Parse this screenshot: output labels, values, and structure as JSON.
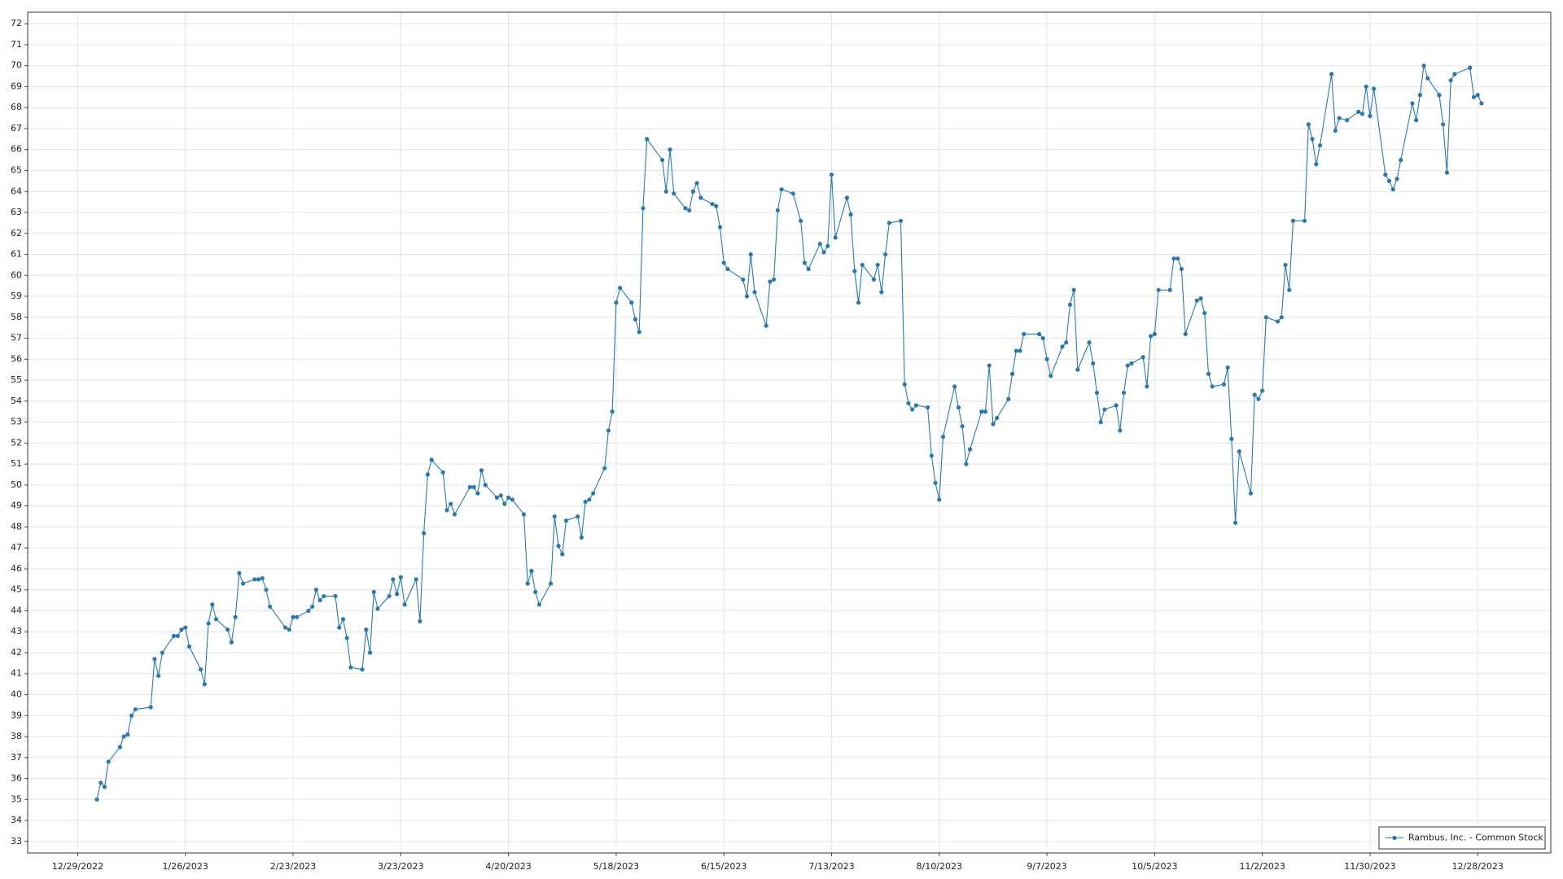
{
  "chart_data": {
    "type": "line",
    "x": [
      "1/3/2023",
      "1/4/2023",
      "1/5/2023",
      "1/6/2023",
      "1/9/2023",
      "1/10/2023",
      "1/11/2023",
      "1/12/2023",
      "1/13/2023",
      "1/17/2023",
      "1/18/2023",
      "1/19/2023",
      "1/20/2023",
      "1/23/2023",
      "1/24/2023",
      "1/25/2023",
      "1/26/2023",
      "1/27/2023",
      "1/30/2023",
      "1/31/2023",
      "2/1/2023",
      "2/2/2023",
      "2/3/2023",
      "2/6/2023",
      "2/7/2023",
      "2/8/2023",
      "2/9/2023",
      "2/10/2023",
      "2/13/2023",
      "2/14/2023",
      "2/15/2023",
      "2/16/2023",
      "2/17/2023",
      "2/21/2023",
      "2/22/2023",
      "2/23/2023",
      "2/24/2023",
      "2/27/2023",
      "2/28/2023",
      "3/1/2023",
      "3/2/2023",
      "3/3/2023",
      "3/6/2023",
      "3/7/2023",
      "3/8/2023",
      "3/9/2023",
      "3/10/2023",
      "3/13/2023",
      "3/14/2023",
      "3/15/2023",
      "3/16/2023",
      "3/17/2023",
      "3/20/2023",
      "3/21/2023",
      "3/22/2023",
      "3/23/2023",
      "3/24/2023",
      "3/27/2023",
      "3/28/2023",
      "3/29/2023",
      "3/30/2023",
      "3/31/2023",
      "4/3/2023",
      "4/4/2023",
      "4/5/2023",
      "4/6/2023",
      "4/10/2023",
      "4/11/2023",
      "4/12/2023",
      "4/13/2023",
      "4/14/2023",
      "4/17/2023",
      "4/18/2023",
      "4/19/2023",
      "4/20/2023",
      "4/21/2023",
      "4/24/2023",
      "4/25/2023",
      "4/26/2023",
      "4/27/2023",
      "4/28/2023",
      "5/1/2023",
      "5/2/2023",
      "5/3/2023",
      "5/4/2023",
      "5/5/2023",
      "5/8/2023",
      "5/9/2023",
      "5/10/2023",
      "5/11/2023",
      "5/12/2023",
      "5/15/2023",
      "5/16/2023",
      "5/17/2023",
      "5/18/2023",
      "5/19/2023",
      "5/22/2023",
      "5/23/2023",
      "5/24/2023",
      "5/25/2023",
      "5/26/2023",
      "5/30/2023",
      "5/31/2023",
      "6/1/2023",
      "6/2/2023",
      "6/5/2023",
      "6/6/2023",
      "6/7/2023",
      "6/8/2023",
      "6/9/2023",
      "6/12/2023",
      "6/13/2023",
      "6/14/2023",
      "6/15/2023",
      "6/16/2023",
      "6/20/2023",
      "6/21/2023",
      "6/22/2023",
      "6/23/2023",
      "6/26/2023",
      "6/27/2023",
      "6/28/2023",
      "6/29/2023",
      "6/30/2023",
      "7/3/2023",
      "7/5/2023",
      "7/6/2023",
      "7/7/2023",
      "7/10/2023",
      "7/11/2023",
      "7/12/2023",
      "7/13/2023",
      "7/14/2023",
      "7/17/2023",
      "7/18/2023",
      "7/19/2023",
      "7/20/2023",
      "7/21/2023",
      "7/24/2023",
      "7/25/2023",
      "7/26/2023",
      "7/27/2023",
      "7/28/2023",
      "7/31/2023",
      "8/1/2023",
      "8/2/2023",
      "8/3/2023",
      "8/4/2023",
      "8/7/2023",
      "8/8/2023",
      "8/9/2023",
      "8/10/2023",
      "8/11/2023",
      "8/14/2023",
      "8/15/2023",
      "8/16/2023",
      "8/17/2023",
      "8/18/2023",
      "8/21/2023",
      "8/22/2023",
      "8/23/2023",
      "8/24/2023",
      "8/25/2023",
      "8/28/2023",
      "8/29/2023",
      "8/30/2023",
      "8/31/2023",
      "9/1/2023",
      "9/5/2023",
      "9/6/2023",
      "9/7/2023",
      "9/8/2023",
      "9/11/2023",
      "9/12/2023",
      "9/13/2023",
      "9/14/2023",
      "9/15/2023",
      "9/18/2023",
      "9/19/2023",
      "9/20/2023",
      "9/21/2023",
      "9/22/2023",
      "9/25/2023",
      "9/26/2023",
      "9/27/2023",
      "9/28/2023",
      "9/29/2023",
      "10/2/2023",
      "10/3/2023",
      "10/4/2023",
      "10/5/2023",
      "10/6/2023",
      "10/9/2023",
      "10/10/2023",
      "10/11/2023",
      "10/12/2023",
      "10/13/2023",
      "10/16/2023",
      "10/17/2023",
      "10/18/2023",
      "10/19/2023",
      "10/20/2023",
      "10/23/2023",
      "10/24/2023",
      "10/25/2023",
      "10/26/2023",
      "10/27/2023",
      "10/30/2023",
      "10/31/2023",
      "11/1/2023",
      "11/2/2023",
      "11/3/2023",
      "11/6/2023",
      "11/7/2023",
      "11/8/2023",
      "11/9/2023",
      "11/10/2023",
      "11/13/2023",
      "11/14/2023",
      "11/15/2023",
      "11/16/2023",
      "11/17/2023",
      "11/20/2023",
      "11/21/2023",
      "11/22/2023",
      "11/24/2023",
      "11/27/2023",
      "11/28/2023",
      "11/29/2023",
      "11/30/2023",
      "12/1/2023",
      "12/4/2023",
      "12/5/2023",
      "12/6/2023",
      "12/7/2023",
      "12/8/2023",
      "12/11/2023",
      "12/12/2023",
      "12/13/2023",
      "12/14/2023",
      "12/15/2023",
      "12/18/2023",
      "12/19/2023",
      "12/20/2023",
      "12/21/2023",
      "12/22/2023",
      "12/26/2023",
      "12/27/2023",
      "12/28/2023",
      "12/29/2023"
    ],
    "series": [
      {
        "name": "Rambus, Inc. - Common Stock",
        "color": "#2b78ad",
        "values": [
          35.0,
          35.8,
          35.6,
          36.8,
          37.5,
          38.0,
          38.1,
          39.0,
          39.3,
          39.4,
          41.7,
          40.9,
          42.0,
          42.8,
          42.8,
          43.1,
          43.2,
          42.3,
          41.2,
          40.5,
          43.4,
          44.3,
          43.6,
          43.1,
          42.5,
          43.7,
          45.8,
          45.3,
          45.5,
          45.5,
          45.55,
          45.0,
          44.2,
          43.2,
          43.1,
          43.7,
          43.7,
          44.0,
          44.2,
          45.0,
          44.5,
          44.7,
          44.7,
          43.2,
          43.6,
          42.7,
          41.3,
          41.2,
          43.1,
          42.0,
          44.9,
          44.1,
          44.7,
          45.5,
          44.8,
          45.6,
          44.3,
          45.5,
          43.5,
          47.7,
          50.5,
          51.2,
          50.6,
          48.8,
          49.1,
          48.6,
          49.9,
          49.9,
          49.6,
          50.7,
          50.0,
          49.4,
          49.5,
          49.1,
          49.4,
          49.3,
          48.6,
          45.3,
          45.9,
          44.9,
          44.3,
          45.3,
          48.5,
          47.1,
          46.7,
          48.3,
          48.5,
          47.5,
          49.2,
          49.3,
          49.6,
          50.8,
          52.6,
          53.5,
          58.7,
          59.4,
          58.7,
          57.9,
          57.3,
          63.2,
          66.5,
          65.5,
          64.0,
          66.0,
          63.9,
          63.2,
          63.1,
          64.0,
          64.4,
          63.7,
          63.4,
          63.3,
          62.3,
          60.6,
          60.3,
          59.8,
          59.0,
          61.0,
          59.2,
          57.6,
          59.7,
          59.8,
          63.1,
          64.1,
          63.9,
          62.6,
          60.6,
          60.3,
          61.5,
          61.1,
          61.4,
          64.8,
          61.8,
          63.7,
          62.9,
          60.2,
          58.7,
          60.5,
          59.8,
          60.5,
          59.2,
          61.0,
          62.5,
          62.6,
          54.8,
          53.9,
          53.6,
          53.8,
          53.7,
          51.4,
          50.1,
          49.3,
          52.3,
          54.7,
          53.7,
          52.8,
          51.0,
          51.7,
          53.5,
          53.5,
          55.7,
          52.9,
          53.2,
          54.1,
          55.3,
          56.4,
          56.4,
          57.2,
          57.2,
          57.0,
          56.0,
          55.2,
          56.6,
          56.8,
          58.6,
          59.3,
          55.5,
          56.8,
          55.8,
          54.4,
          53.0,
          53.6,
          53.8,
          52.6,
          54.4,
          55.7,
          55.8,
          56.1,
          54.7,
          57.1,
          57.2,
          59.3,
          59.3,
          60.8,
          60.8,
          60.3,
          57.2,
          58.8,
          58.9,
          58.2,
          55.3,
          54.7,
          54.8,
          55.6,
          52.2,
          48.2,
          51.6,
          49.6,
          54.3,
          54.1,
          54.5,
          58.0,
          57.8,
          58.0,
          60.5,
          59.3,
          62.6,
          62.6,
          67.2,
          66.5,
          65.3,
          66.2,
          69.6,
          66.9,
          67.5,
          67.4,
          67.8,
          67.7,
          69.0,
          67.6,
          68.9,
          64.8,
          64.5,
          64.1,
          64.6,
          65.5,
          68.2,
          67.4,
          68.6,
          70.0,
          69.4,
          68.6,
          67.2,
          64.9,
          69.3,
          69.6,
          69.9,
          68.5,
          68.6,
          68.2
        ]
      }
    ],
    "xlim": [
      "12/16/2022",
      "1/16/2024"
    ],
    "xticks": [
      "12/29/2022",
      "1/26/2023",
      "2/23/2023",
      "3/23/2023",
      "4/20/2023",
      "5/18/2023",
      "6/15/2023",
      "7/13/2023",
      "8/10/2023",
      "9/7/2023",
      "10/5/2023",
      "11/2/2023",
      "11/30/2023",
      "12/28/2023"
    ],
    "ylim": [
      32.45,
      72.55
    ],
    "yticks": [
      33,
      34,
      35,
      36,
      37,
      38,
      39,
      40,
      41,
      42,
      43,
      44,
      45,
      46,
      47,
      48,
      49,
      50,
      51,
      52,
      53,
      54,
      55,
      56,
      57,
      58,
      59,
      60,
      61,
      62,
      63,
      64,
      65,
      66,
      67,
      68,
      69,
      70,
      71,
      72
    ],
    "grid": true,
    "legend": "lower right"
  }
}
